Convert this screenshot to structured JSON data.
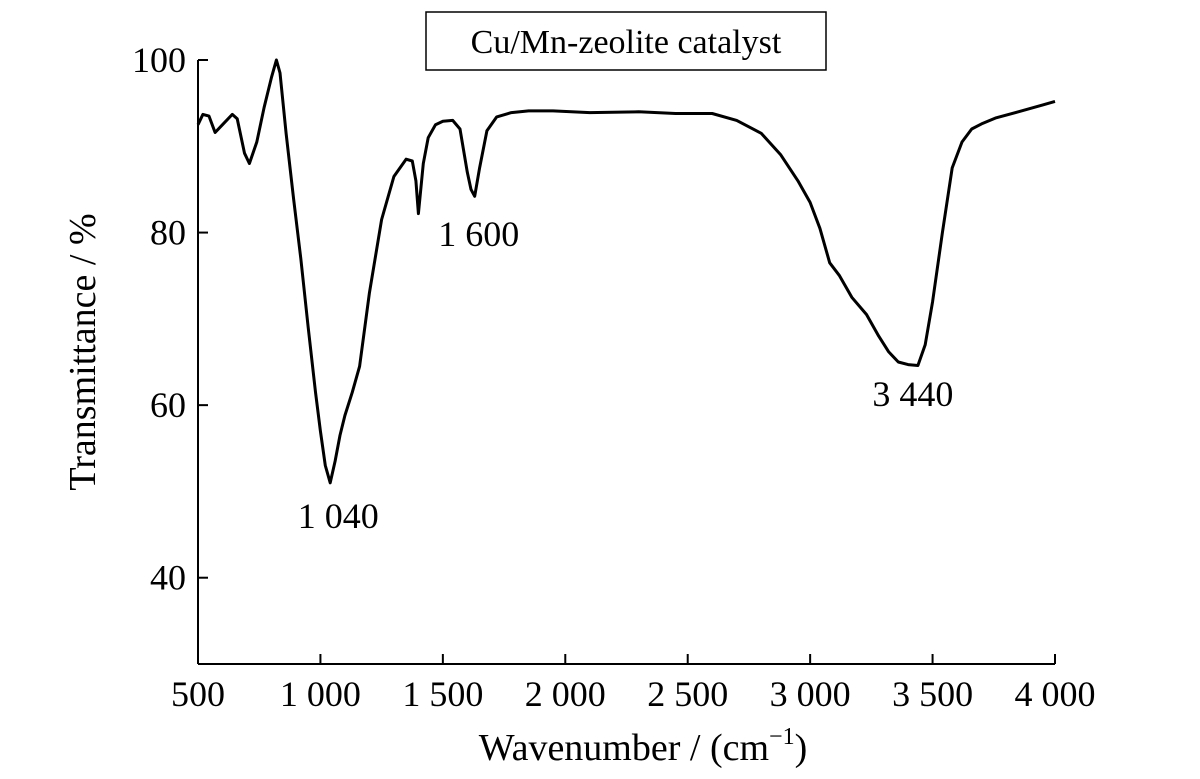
{
  "chart_data": {
    "type": "line",
    "title": "Cu/Mn-zeolite catalyst",
    "xlabel": "Wavenumber / (cm",
    "xlabel_sup": "−1",
    "xlabel_end": ")",
    "ylabel": "Transmittance / %",
    "xlim": [
      500,
      4000
    ],
    "ylim": [
      30,
      100
    ],
    "x_ticks": [
      500,
      1000,
      1500,
      2000,
      2500,
      3000,
      3500,
      4000
    ],
    "x_tick_labels": [
      "500",
      "1 000",
      "1 500",
      "2 000",
      "2 500",
      "3 000",
      "3 500",
      "4 000"
    ],
    "y_ticks": [
      40,
      60,
      80,
      100
    ],
    "y_tick_labels": [
      "40",
      "60",
      "80",
      "100"
    ],
    "grid": false,
    "annotations": [
      {
        "text": "1 040",
        "x": 1040,
        "y": 51
      },
      {
        "text": "1 600",
        "x": 1630,
        "y": 84
      },
      {
        "text": "3 440",
        "x": 3440,
        "y": 65
      }
    ],
    "series": [
      {
        "color": "#000000",
        "x": [
          500,
          520,
          545,
          570,
          600,
          640,
          660,
          690,
          710,
          740,
          770,
          800,
          820,
          835,
          860,
          890,
          920,
          950,
          980,
          1000,
          1020,
          1040,
          1060,
          1080,
          1100,
          1130,
          1160,
          1200,
          1250,
          1300,
          1350,
          1375,
          1390,
          1400,
          1420,
          1440,
          1470,
          1500,
          1540,
          1570,
          1600,
          1615,
          1630,
          1650,
          1680,
          1720,
          1780,
          1850,
          1950,
          2100,
          2300,
          2450,
          2600,
          2700,
          2800,
          2880,
          2950,
          3000,
          3040,
          3080,
          3120,
          3170,
          3230,
          3280,
          3320,
          3360,
          3400,
          3440,
          3470,
          3500,
          3540,
          3580,
          3620,
          3660,
          3700,
          3760,
          3850,
          3950,
          4000
        ],
        "y": [
          92.5,
          93.7,
          93.5,
          91.6,
          92.5,
          93.7,
          93.2,
          89.2,
          88.0,
          90.5,
          94.5,
          98.0,
          100.0,
          98.5,
          91.5,
          84.0,
          77.0,
          69.0,
          61.5,
          57.0,
          53.0,
          51.0,
          53.5,
          56.5,
          58.8,
          61.5,
          64.5,
          73.0,
          81.5,
          86.5,
          88.5,
          88.3,
          86.0,
          82.2,
          88.0,
          91.0,
          92.5,
          92.9,
          93.0,
          92.0,
          87.0,
          85.0,
          84.2,
          87.5,
          91.8,
          93.4,
          93.9,
          94.1,
          94.1,
          93.9,
          94.0,
          93.8,
          93.8,
          93.0,
          91.5,
          89.0,
          86.0,
          83.5,
          80.5,
          76.5,
          75.0,
          72.5,
          70.5,
          68.0,
          66.2,
          65.0,
          64.7,
          64.6,
          67.0,
          72.0,
          80.0,
          87.5,
          90.5,
          92.0,
          92.6,
          93.3,
          94.0,
          94.8,
          95.2
        ]
      }
    ]
  }
}
